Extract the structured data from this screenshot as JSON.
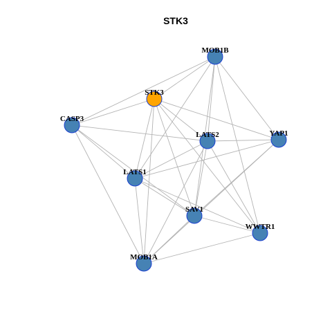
{
  "title": "STK3",
  "nodes": [
    {
      "label": "MOB1B",
      "color": "#4682b4"
    },
    {
      "label": "STK3",
      "color": "#ffa500"
    },
    {
      "label": "CASP3",
      "color": "#4682b4"
    },
    {
      "label": "LATS2",
      "color": "#4682b4"
    },
    {
      "label": "YAP1",
      "color": "#4682b4"
    },
    {
      "label": "LATS1",
      "color": "#4682b4"
    },
    {
      "label": "SAV1",
      "color": "#4682b4"
    },
    {
      "label": "WWTR1",
      "color": "#4682b4"
    },
    {
      "label": "MOB1A",
      "color": "#4682b4"
    }
  ],
  "edges": [
    [
      "MOB1B",
      "CASP3"
    ],
    [
      "MOB1B",
      "STK3"
    ],
    [
      "MOB1B",
      "LATS1"
    ],
    [
      "MOB1B",
      "LATS2"
    ],
    [
      "MOB1B",
      "SAV1"
    ],
    [
      "MOB1B",
      "YAP1"
    ],
    [
      "MOB1B",
      "WWTR1"
    ],
    [
      "STK3",
      "CASP3"
    ],
    [
      "STK3",
      "YAP1"
    ],
    [
      "STK3",
      "LATS2"
    ],
    [
      "STK3",
      "LATS1"
    ],
    [
      "STK3",
      "MOB1A"
    ],
    [
      "STK3",
      "SAV1"
    ],
    [
      "STK3",
      "WWTR1"
    ],
    [
      "CASP3",
      "LATS2"
    ],
    [
      "CASP3",
      "LATS1"
    ],
    [
      "CASP3",
      "SAV1"
    ],
    [
      "CASP3",
      "MOB1A"
    ],
    [
      "LATS2",
      "YAP1"
    ],
    [
      "LATS2",
      "LATS1"
    ],
    [
      "LATS2",
      "SAV1"
    ],
    [
      "LATS2",
      "WWTR1"
    ],
    [
      "LATS2",
      "MOB1A"
    ],
    [
      "YAP1",
      "LATS1"
    ],
    [
      "YAP1",
      "SAV1"
    ],
    [
      "YAP1",
      "MOB1A"
    ],
    [
      "LATS1",
      "SAV1"
    ],
    [
      "LATS1",
      "WWTR1"
    ],
    [
      "LATS1",
      "MOB1A"
    ],
    [
      "SAV1",
      "WWTR1"
    ],
    [
      "SAV1",
      "MOB1A"
    ],
    [
      "WWTR1",
      "MOB1A"
    ]
  ]
}
